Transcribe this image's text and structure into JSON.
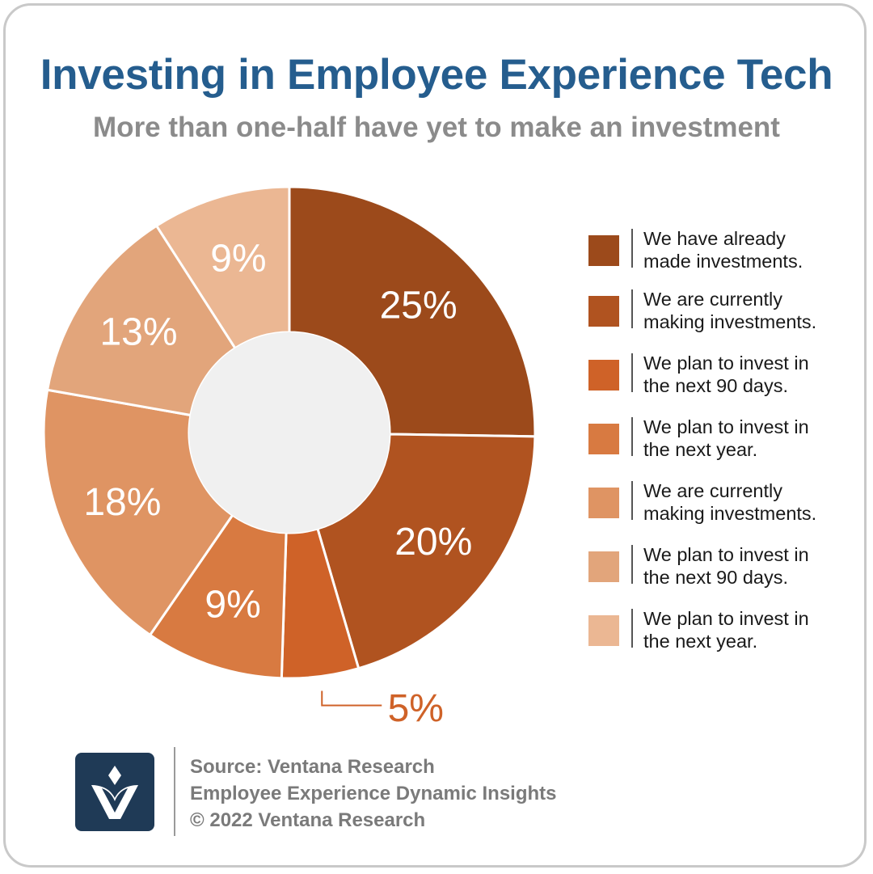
{
  "title": "Investing in Employee Experience Tech",
  "subtitle": "More than one-half have yet to make an investment",
  "chart_data": {
    "type": "pie",
    "variant": "donut",
    "title": "Investing in Employee Experience Tech",
    "subtitle": "More than one-half have yet to make an investment",
    "legend_position": "right",
    "slices": [
      {
        "label": "We have already made investments.",
        "value": 25,
        "display": "25%",
        "color": "#9c4a1b"
      },
      {
        "label": "We are currently making investments.",
        "value": 20,
        "display": "20%",
        "color": "#b05320"
      },
      {
        "label": "We plan to invest in the next 90 days.",
        "value": 5,
        "display": "5%",
        "color": "#cf6228"
      },
      {
        "label": "We plan to invest in the next year.",
        "value": 9,
        "display": "9%",
        "color": "#d87a41"
      },
      {
        "label": "We are currently making investments.",
        "value": 18,
        "display": "18%",
        "color": "#df9463"
      },
      {
        "label": "We plan to invest in the next 90 days.",
        "value": 13,
        "display": "13%",
        "color": "#e2a57b"
      },
      {
        "label": "We plan to invest in the next year.",
        "value": 9,
        "display": "9%",
        "color": "#ebb793"
      }
    ]
  },
  "legend": [
    {
      "text": "We have already\nmade investments.",
      "color": "#9c4a1b"
    },
    {
      "text": "We are currently\nmaking investments.",
      "color": "#b05320"
    },
    {
      "text": "We plan to invest in\nthe next 90 days.",
      "color": "#cf6228"
    },
    {
      "text": "We plan to invest in\nthe next year.",
      "color": "#d87a41"
    },
    {
      "text": "We are currently\nmaking investments.",
      "color": "#df9463"
    },
    {
      "text": "We plan to invest in\nthe next 90 days.",
      "color": "#e2a57b"
    },
    {
      "text": "We plan to invest in\nthe next year.",
      "color": "#ebb793"
    }
  ],
  "footer": {
    "logo_icon": "ventana-v-logo-icon",
    "line1": "Source: Ventana Research",
    "line2": "Employee Experience Dynamic Insights",
    "line3": "© 2022 Ventana Research"
  }
}
